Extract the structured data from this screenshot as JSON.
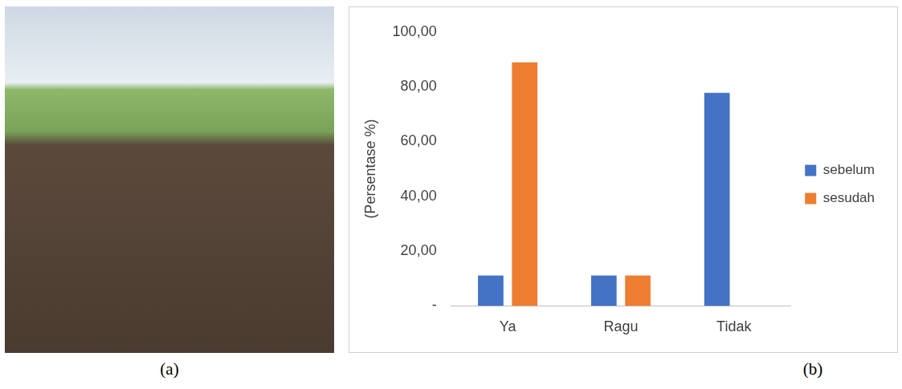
{
  "chart_data": {
    "type": "bar",
    "y_label": "(Persentase %)",
    "categories": [
      "Ya",
      "Ragu",
      "Tidak"
    ],
    "series": [
      {
        "name": "sebelum",
        "color": "#4472c4",
        "values": [
          11.11,
          11.11,
          77.78
        ]
      },
      {
        "name": "sesudah",
        "color": "#ed7d31",
        "values": [
          88.89,
          11.11,
          0
        ]
      }
    ],
    "ylim": [
      0,
      100
    ],
    "yticks": [
      {
        "value": 0,
        "label": "-"
      },
      {
        "value": 20,
        "label": "20,00"
      },
      {
        "value": 40,
        "label": "40,00"
      },
      {
        "value": 60,
        "label": "60,00"
      },
      {
        "value": 80,
        "label": "80,00"
      },
      {
        "value": 100,
        "label": "100,00"
      }
    ],
    "grid": false,
    "legend": "right"
  },
  "panel_labels": [
    "(a)",
    "(b)"
  ]
}
